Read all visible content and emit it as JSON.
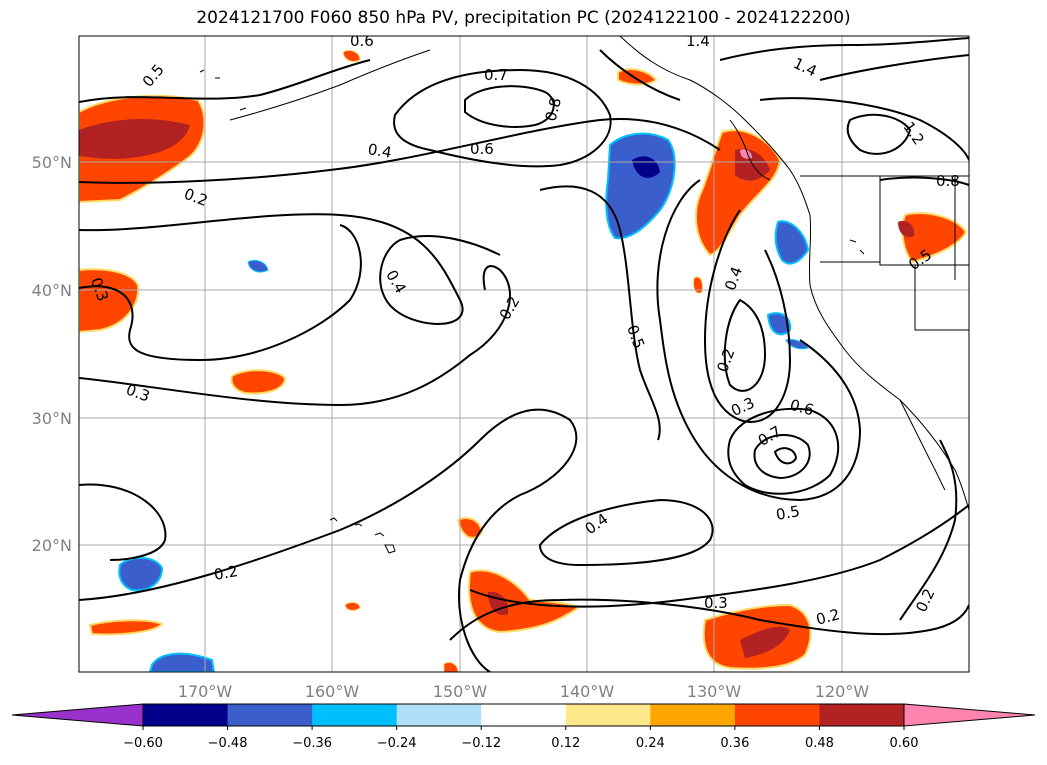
{
  "title": "2024121700 F060 850 hPa PV, precipitation PC (2024122100 - 2024122200)",
  "map": {
    "lat_ticks": [
      "50°N",
      "40°N",
      "30°N",
      "20°N"
    ],
    "lon_ticks": [
      "170°W",
      "160°W",
      "150°W",
      "140°W",
      "130°W",
      "120°W"
    ],
    "grid": true,
    "contour_color": "#000000",
    "coastline_color": "#000000",
    "contour_labels": [
      "0.5",
      "0.4",
      "0.2",
      "0.3",
      "0.6",
      "0.7",
      "0.8",
      "1.4",
      "1.2",
      "0.4",
      "0.2",
      "0.5",
      "0.4",
      "0.2",
      "0.3",
      "0.6",
      "0.7",
      "0.5",
      "0.4",
      "0.3",
      "0.2",
      "0.2",
      "0.3",
      "0.8",
      "0.5",
      "0.2",
      "0.6",
      "1.4"
    ]
  },
  "colorbar": {
    "ticks": [
      "−0.60",
      "−0.48",
      "−0.36",
      "−0.24",
      "−0.12",
      "0.12",
      "0.24",
      "0.36",
      "0.48",
      "0.60"
    ],
    "colors": [
      "#9932cc",
      "#00008b",
      "#3a5fcd",
      "#00bfff",
      "#b0e0f8",
      "#ffffff",
      "#ffe88c",
      "#ffa500",
      "#ff4500",
      "#b22222",
      "#ff85b0"
    ],
    "extend": "both"
  }
}
